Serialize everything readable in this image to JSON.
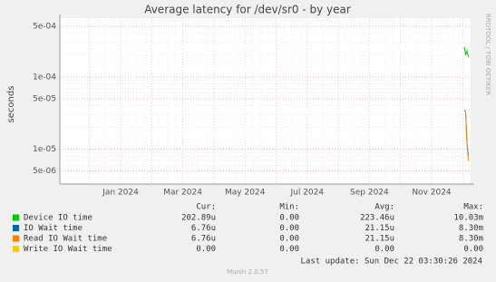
{
  "chart_data": {
    "type": "line",
    "title": "Average latency for /dev/sr0 - by year",
    "y_label": "seconds",
    "log_y": true,
    "ylim": [
      3.3e-06,
      0.00065
    ],
    "yticks": [
      {
        "value": 5e-06,
        "label": "5e-06"
      },
      {
        "value": 1e-05,
        "label": "1e-05"
      },
      {
        "value": 5e-05,
        "label": "5e-05"
      },
      {
        "value": 0.0001,
        "label": "1e-04"
      },
      {
        "value": 0.0005,
        "label": "5e-04"
      }
    ],
    "x_tick_labels": [
      "Jan 2024",
      "Mar 2024",
      "May 2024",
      "Jul 2024",
      "Sep 2024",
      "Nov 2024"
    ],
    "series": [
      {
        "name": "Device IO time",
        "color": "#00cc00",
        "values": [
          0.00026,
          0.0002,
          0.00023,
          0.00019
        ]
      },
      {
        "name": "IO Wait time",
        "color": "#0066b3",
        "values": [
          3.5e-05,
          3.3e-05,
          1.2e-05,
          8e-06
        ]
      },
      {
        "name": "Read IO Wait time",
        "color": "#ff8000",
        "values": [
          3.5e-05,
          3.3e-05,
          1.2e-05,
          7e-06
        ]
      },
      {
        "name": "Write IO Wait time",
        "color": "#ffcc00"
      }
    ],
    "legend_headers": [
      "Cur:",
      "Min:",
      "Avg:",
      "Max:"
    ],
    "legend_rows": [
      [
        "202.89u",
        "0.00",
        "223.46u",
        "10.03m"
      ],
      [
        "6.76u",
        "0.00",
        "21.15u",
        "8.30m"
      ],
      [
        "6.76u",
        "0.00",
        "21.15u",
        "8.30m"
      ],
      [
        "0.00",
        "0.00",
        "0.00",
        "0.00"
      ]
    ],
    "last_update": "Last update: Sun Dec 22 03:30:26 2024",
    "footer": "Munin 2.0.57",
    "side_text": "RRDTOOL / TOBI OETIKER"
  }
}
